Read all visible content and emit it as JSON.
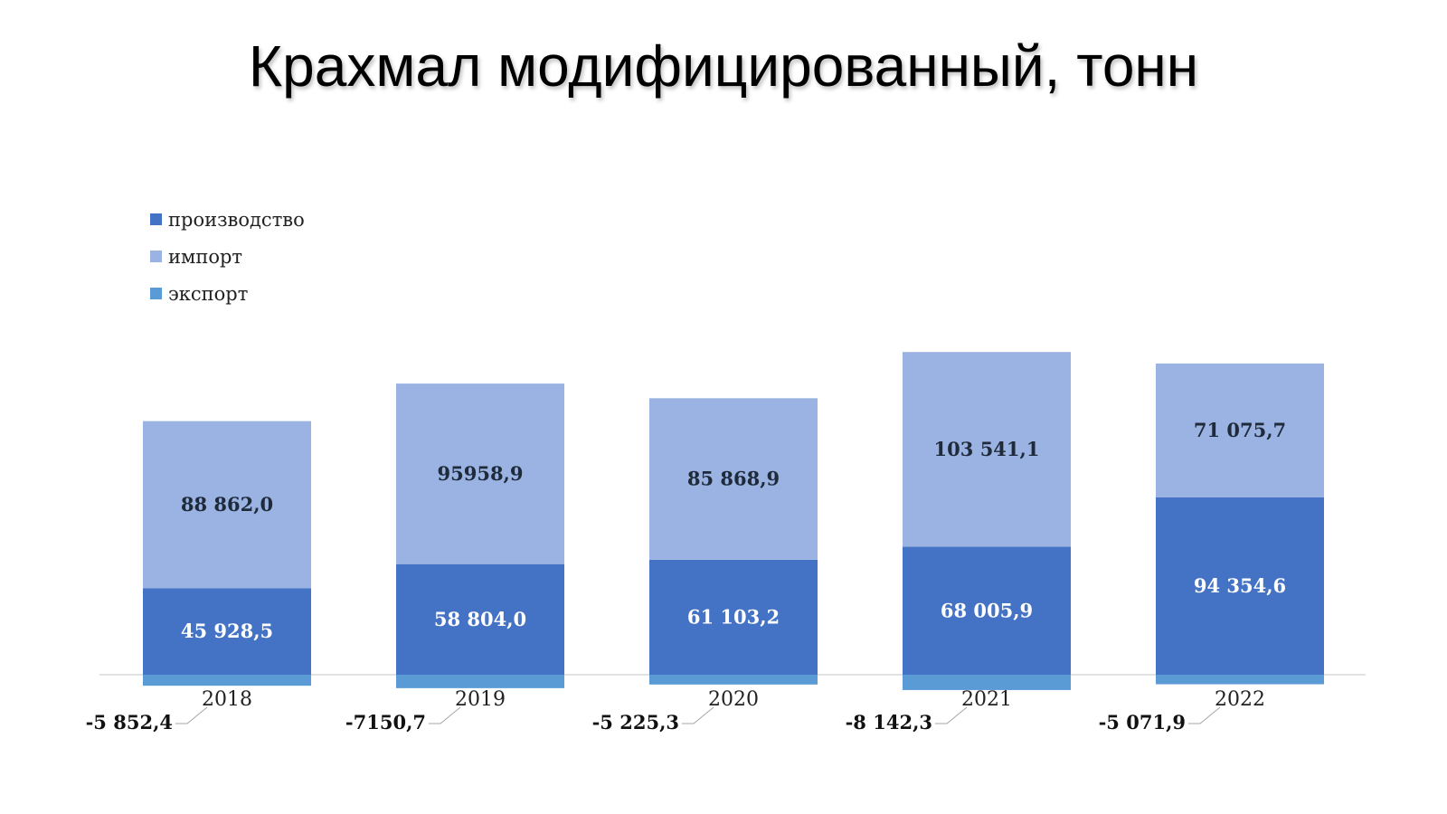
{
  "colors": {
    "production": "#4472C4",
    "import": "#9AB3E2",
    "export": "#5B9BD5"
  },
  "chart_data": {
    "type": "bar",
    "stacked": true,
    "title": "Крахмал модифицированный, тонн",
    "categories": [
      "2018",
      "2019",
      "2020",
      "2021",
      "2022"
    ],
    "series": [
      {
        "name": "производство",
        "values": [
          45928.5,
          58804.0,
          61103.2,
          68005.9,
          94354.6
        ],
        "labels": [
          "45 928,5",
          "58 804,0",
          "61 103,2",
          "68 005,9",
          "94 354,6"
        ]
      },
      {
        "name": "импорт",
        "values": [
          88862.0,
          95958.9,
          85868.9,
          103541.1,
          71075.7
        ],
        "labels": [
          "88 862,0",
          "95958,9",
          "85 868,9",
          "103 541,1",
          "71 075,7"
        ]
      },
      {
        "name": "экспорт",
        "values": [
          -5852.4,
          -7150.7,
          -5225.3,
          -8142.3,
          -5071.9
        ],
        "labels": [
          "-5 852,4",
          "-7150,7",
          "-5 225,3",
          "-8 142,3",
          "-5 071,9"
        ]
      }
    ],
    "legend_position": "top-left",
    "grid": false
  }
}
